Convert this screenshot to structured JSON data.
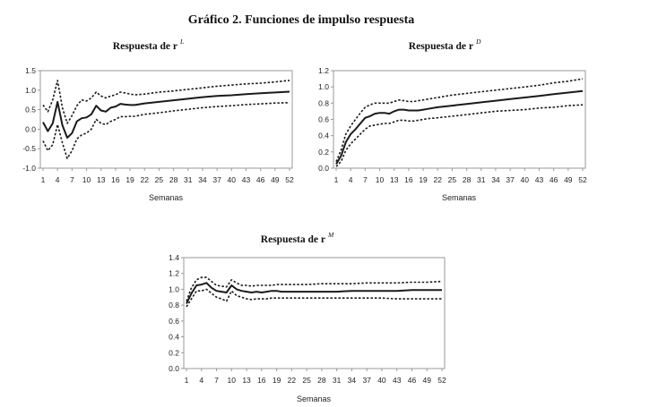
{
  "figure_title": "Gráfico 2. Funciones de impulso respuesta",
  "chart_data": [
    {
      "type": "line",
      "title": "Respuesta  de r",
      "title_superscript": "L",
      "xlabel": "Semanas",
      "ylabel": "",
      "ylim": [
        -1.0,
        1.5
      ],
      "yticks": [
        "-1.0",
        "-0.5",
        "0.0",
        "0.5",
        "1.0",
        "1.5"
      ],
      "xticks": [
        "1",
        "4",
        "7",
        "10",
        "13",
        "16",
        "19",
        "22",
        "25",
        "28",
        "31",
        "34",
        "37",
        "40",
        "43",
        "46",
        "49",
        "52"
      ],
      "x_range": [
        1,
        52
      ],
      "grid": false,
      "series": [
        {
          "role": "response",
          "style": "solid",
          "x": [
            1,
            2,
            3,
            4,
            5,
            6,
            7,
            8,
            9,
            10,
            11,
            12,
            13,
            14,
            15,
            16,
            17,
            18,
            19,
            20,
            22,
            25,
            28,
            31,
            34,
            37,
            40,
            43,
            46,
            49,
            52
          ],
          "values": [
            0.18,
            -0.05,
            0.15,
            0.7,
            0.1,
            -0.22,
            -0.1,
            0.2,
            0.28,
            0.3,
            0.38,
            0.6,
            0.48,
            0.45,
            0.55,
            0.58,
            0.65,
            0.63,
            0.62,
            0.62,
            0.66,
            0.7,
            0.74,
            0.78,
            0.82,
            0.85,
            0.87,
            0.9,
            0.92,
            0.94,
            0.96
          ]
        },
        {
          "role": "upper",
          "style": "dashed",
          "x": [
            1,
            2,
            3,
            4,
            5,
            6,
            7,
            8,
            9,
            10,
            11,
            12,
            13,
            14,
            15,
            16,
            17,
            18,
            19,
            20,
            22,
            25,
            28,
            31,
            34,
            37,
            40,
            43,
            46,
            49,
            52
          ],
          "values": [
            0.62,
            0.45,
            0.75,
            1.25,
            0.55,
            0.15,
            0.35,
            0.6,
            0.75,
            0.72,
            0.8,
            0.95,
            0.85,
            0.8,
            0.85,
            0.88,
            0.95,
            0.93,
            0.9,
            0.88,
            0.9,
            0.95,
            0.98,
            1.02,
            1.06,
            1.1,
            1.13,
            1.16,
            1.18,
            1.21,
            1.25
          ]
        },
        {
          "role": "lower",
          "style": "dashed",
          "x": [
            1,
            2,
            3,
            4,
            5,
            6,
            7,
            8,
            9,
            10,
            11,
            12,
            13,
            14,
            15,
            16,
            17,
            18,
            19,
            20,
            22,
            25,
            28,
            31,
            34,
            37,
            40,
            43,
            46,
            49,
            52
          ],
          "values": [
            -0.3,
            -0.55,
            -0.4,
            0.12,
            -0.35,
            -0.75,
            -0.55,
            -0.25,
            -0.15,
            -0.1,
            0.0,
            0.25,
            0.15,
            0.12,
            0.2,
            0.25,
            0.32,
            0.32,
            0.33,
            0.33,
            0.38,
            0.42,
            0.47,
            0.51,
            0.55,
            0.58,
            0.6,
            0.63,
            0.65,
            0.67,
            0.68
          ]
        }
      ]
    },
    {
      "type": "line",
      "title": "Respuesta de r",
      "title_superscript": "D",
      "xlabel": "Semanas",
      "ylabel": "",
      "ylim": [
        0.0,
        1.2
      ],
      "yticks": [
        "0.0",
        "0.2",
        "0.4",
        "0.6",
        "0.8",
        "1.0",
        "1.2"
      ],
      "xticks": [
        "1",
        "4",
        "7",
        "10",
        "13",
        "16",
        "19",
        "22",
        "25",
        "28",
        "31",
        "34",
        "37",
        "40",
        "43",
        "46",
        "49",
        "52"
      ],
      "x_range": [
        1,
        52
      ],
      "grid": false,
      "series": [
        {
          "role": "response",
          "style": "solid",
          "x": [
            1,
            2,
            3,
            4,
            5,
            6,
            7,
            8,
            9,
            10,
            11,
            12,
            13,
            14,
            15,
            16,
            17,
            18,
            19,
            20,
            22,
            25,
            28,
            31,
            34,
            37,
            40,
            43,
            46,
            49,
            52
          ],
          "values": [
            0.05,
            0.15,
            0.32,
            0.42,
            0.48,
            0.55,
            0.62,
            0.64,
            0.67,
            0.68,
            0.68,
            0.67,
            0.7,
            0.72,
            0.72,
            0.71,
            0.71,
            0.71,
            0.72,
            0.73,
            0.75,
            0.77,
            0.79,
            0.81,
            0.83,
            0.85,
            0.87,
            0.89,
            0.91,
            0.93,
            0.95
          ]
        },
        {
          "role": "upper",
          "style": "dashed",
          "x": [
            1,
            2,
            3,
            4,
            5,
            6,
            7,
            8,
            9,
            10,
            11,
            12,
            13,
            14,
            15,
            16,
            17,
            18,
            19,
            20,
            22,
            25,
            28,
            31,
            34,
            37,
            40,
            43,
            46,
            49,
            52
          ],
          "values": [
            0.08,
            0.22,
            0.42,
            0.52,
            0.6,
            0.68,
            0.75,
            0.78,
            0.8,
            0.8,
            0.8,
            0.8,
            0.82,
            0.84,
            0.83,
            0.82,
            0.82,
            0.83,
            0.84,
            0.85,
            0.87,
            0.9,
            0.92,
            0.94,
            0.96,
            0.98,
            1.0,
            1.02,
            1.05,
            1.07,
            1.1
          ]
        },
        {
          "role": "lower",
          "style": "dashed",
          "x": [
            1,
            2,
            3,
            4,
            5,
            6,
            7,
            8,
            9,
            10,
            11,
            12,
            13,
            14,
            15,
            16,
            17,
            18,
            19,
            20,
            22,
            25,
            28,
            31,
            34,
            37,
            40,
            43,
            46,
            49,
            52
          ],
          "values": [
            0.02,
            0.08,
            0.22,
            0.3,
            0.36,
            0.42,
            0.48,
            0.52,
            0.53,
            0.54,
            0.55,
            0.55,
            0.57,
            0.59,
            0.59,
            0.58,
            0.58,
            0.59,
            0.6,
            0.61,
            0.62,
            0.64,
            0.66,
            0.68,
            0.7,
            0.71,
            0.72,
            0.74,
            0.75,
            0.77,
            0.78
          ]
        }
      ]
    },
    {
      "type": "line",
      "title": "Respuesta de r",
      "title_superscript": "M",
      "xlabel": "Semanas",
      "ylabel": "",
      "ylim": [
        0.0,
        1.4
      ],
      "yticks": [
        "0.0",
        "0.2",
        "0.4",
        "0.6",
        "0.8",
        "1.0",
        "1.2",
        "1.4"
      ],
      "xticks": [
        "1",
        "4",
        "7",
        "10",
        "13",
        "16",
        "19",
        "22",
        "25",
        "28",
        "31",
        "34",
        "37",
        "40",
        "43",
        "46",
        "49",
        "52"
      ],
      "x_range": [
        1,
        52
      ],
      "grid": false,
      "series": [
        {
          "role": "response",
          "style": "solid",
          "x": [
            1,
            2,
            3,
            4,
            5,
            6,
            7,
            8,
            9,
            10,
            11,
            12,
            13,
            14,
            15,
            16,
            17,
            18,
            19,
            20,
            22,
            25,
            28,
            31,
            34,
            37,
            40,
            43,
            46,
            49,
            52
          ],
          "values": [
            0.82,
            0.95,
            1.05,
            1.06,
            1.08,
            1.02,
            0.98,
            0.97,
            0.96,
            1.05,
            1.0,
            0.98,
            0.97,
            0.96,
            0.97,
            0.96,
            0.97,
            0.98,
            0.98,
            0.97,
            0.97,
            0.97,
            0.97,
            0.97,
            0.98,
            0.98,
            0.98,
            0.98,
            0.99,
            0.99,
            0.99
          ]
        },
        {
          "role": "upper",
          "style": "dashed",
          "x": [
            1,
            2,
            3,
            4,
            5,
            6,
            7,
            8,
            9,
            10,
            11,
            12,
            13,
            14,
            15,
            16,
            17,
            18,
            19,
            20,
            22,
            25,
            28,
            31,
            34,
            37,
            40,
            43,
            46,
            49,
            52
          ],
          "values": [
            0.85,
            1.02,
            1.12,
            1.15,
            1.15,
            1.1,
            1.05,
            1.04,
            1.03,
            1.12,
            1.08,
            1.05,
            1.05,
            1.04,
            1.05,
            1.05,
            1.05,
            1.05,
            1.06,
            1.06,
            1.06,
            1.06,
            1.07,
            1.07,
            1.07,
            1.08,
            1.08,
            1.08,
            1.09,
            1.09,
            1.1
          ]
        },
        {
          "role": "lower",
          "style": "dashed",
          "x": [
            1,
            2,
            3,
            4,
            5,
            6,
            7,
            8,
            9,
            10,
            11,
            12,
            13,
            14,
            15,
            16,
            17,
            18,
            19,
            20,
            22,
            25,
            28,
            31,
            34,
            37,
            40,
            43,
            46,
            49,
            52
          ],
          "values": [
            0.78,
            0.88,
            0.98,
            0.98,
            1.0,
            0.95,
            0.9,
            0.88,
            0.85,
            0.98,
            0.92,
            0.9,
            0.88,
            0.87,
            0.88,
            0.88,
            0.88,
            0.89,
            0.89,
            0.89,
            0.89,
            0.89,
            0.89,
            0.89,
            0.89,
            0.89,
            0.89,
            0.88,
            0.88,
            0.88,
            0.88
          ]
        }
      ]
    }
  ]
}
